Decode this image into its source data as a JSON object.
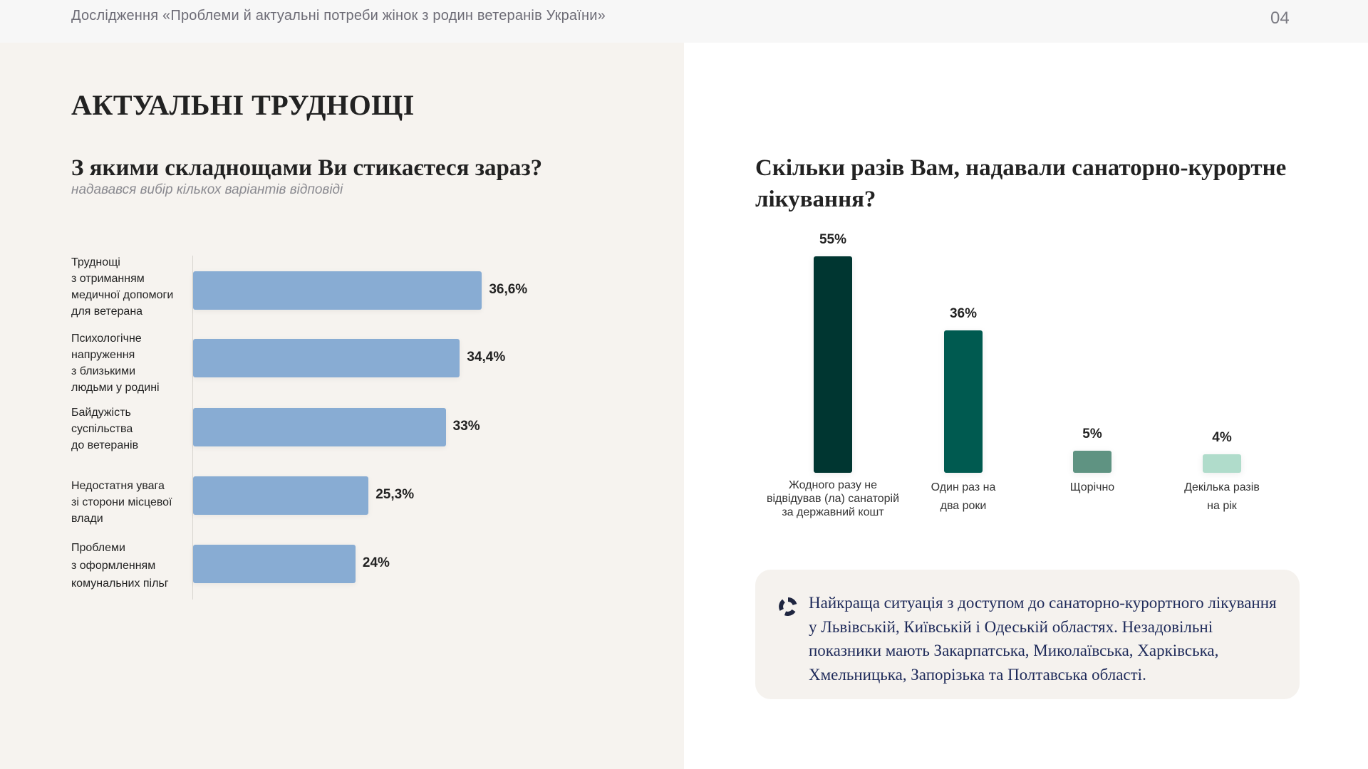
{
  "header": {
    "title": "Дослідження «Проблеми й актуальні потреби жінок з родин ветеранів України»",
    "page_number": "04"
  },
  "left": {
    "title": "АКТУАЛЬНІ ТРУДНОЩІ",
    "question": "З якими складнощами Ви стикаєтеся зараз?",
    "note": "надавався вибір кількох варіантів відповіді"
  },
  "right": {
    "question": "Скільки разів Вам, надавали санаторно-курортне лікування?",
    "callout": "Найкраща ситуація з доступом до санаторно-курортного лікування у  Львівській, Київській і Одеській областях. Незадовільні показники мають Закарпатська, Миколаївська, Харківська, Хмельницька, Запорізька та Полтавська області."
  },
  "chart_data": [
    {
      "type": "bar",
      "orientation": "horizontal",
      "title": "З якими складнощами Ви стикаєтеся зараз?",
      "categories": [
        "Труднощі\nз отриманням\nмедичної допомоги\nдля ветерана",
        "Психологічне\nнапруження\nз близькими\nлюдьми у родині",
        "Байдужість\nсуспільства\nдо ветеранів",
        "Недостатня увага\nзі сторони місцевої\nвлади",
        "Проблеми\nз оформленням\nкомунальних пільг"
      ],
      "values": [
        36.6,
        34.4,
        33,
        25.3,
        24
      ],
      "value_labels": [
        "36,6%",
        "34,4%",
        "33%",
        "25,3%",
        "24%"
      ],
      "unit": "%",
      "color": "#88acd3"
    },
    {
      "type": "bar",
      "orientation": "vertical",
      "title": "Скільки разів Вам, надавали санаторно-курортне лікування?",
      "categories": [
        "Жодного разу не\nвідвідував (ла) санаторій\nза державний кошт",
        "Один раз на\nдва роки",
        "Щорічно",
        "Декілька разів\nна рік"
      ],
      "values": [
        55,
        36,
        5,
        4
      ],
      "value_labels": [
        "55%",
        "36%",
        "5%",
        "4%"
      ],
      "unit": "%",
      "colors": [
        "#003631",
        "#005a50",
        "#5f9382",
        "#b0dccb"
      ]
    }
  ]
}
